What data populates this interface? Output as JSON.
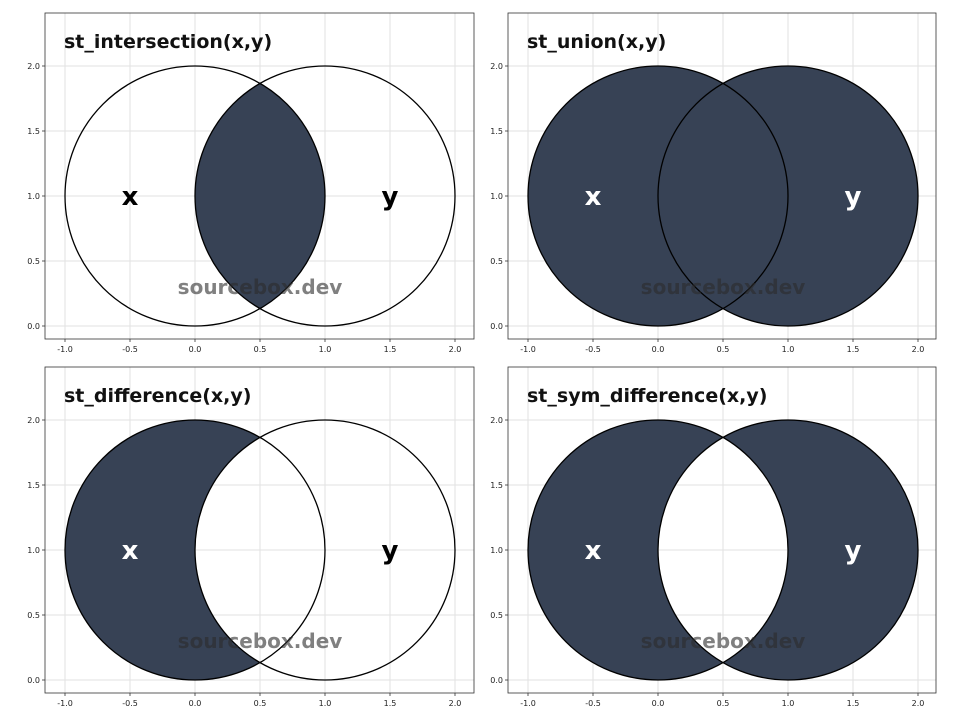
{
  "colors": {
    "fill": "#374255",
    "outline": "#000000",
    "background": "#ffffff",
    "grid": "#e2e2e2",
    "label_on_fill": "#ffffff",
    "label_on_empty": "#000000"
  },
  "watermark": "sourcebox.dev",
  "chart_data": [
    {
      "type": "venn",
      "title": "st_intersection(x,y)",
      "operation": "intersection",
      "circles": [
        {
          "name": "x",
          "cx": 0.0,
          "cy": 1.0,
          "r": 1.0
        },
        {
          "name": "y",
          "cx": 1.0,
          "cy": 1.0,
          "r": 1.0
        }
      ],
      "labels": [
        {
          "text": "x",
          "x": -0.5,
          "y": 1.0
        },
        {
          "text": "y",
          "x": 1.5,
          "y": 1.0
        }
      ],
      "xlim": [
        -1.0,
        2.0
      ],
      "ylim": [
        0.0,
        2.0
      ],
      "xticks": [
        "-1.0",
        "-0.5",
        "0.0",
        "0.5",
        "1.0",
        "1.5",
        "2.0"
      ],
      "yticks": [
        "0.0",
        "0.5",
        "1.0",
        "1.5",
        "2.0"
      ],
      "grid": true
    },
    {
      "type": "venn",
      "title": "st_union(x,y)",
      "operation": "union",
      "circles": [
        {
          "name": "x",
          "cx": 0.0,
          "cy": 1.0,
          "r": 1.0
        },
        {
          "name": "y",
          "cx": 1.0,
          "cy": 1.0,
          "r": 1.0
        }
      ],
      "labels": [
        {
          "text": "x",
          "x": -0.5,
          "y": 1.0
        },
        {
          "text": "y",
          "x": 1.5,
          "y": 1.0
        }
      ],
      "xlim": [
        -1.0,
        2.0
      ],
      "ylim": [
        0.0,
        2.0
      ],
      "xticks": [
        "-1.0",
        "-0.5",
        "0.0",
        "0.5",
        "1.0",
        "1.5",
        "2.0"
      ],
      "yticks": [
        "0.0",
        "0.5",
        "1.0",
        "1.5",
        "2.0"
      ],
      "grid": true
    },
    {
      "type": "venn",
      "title": "st_difference(x,y)",
      "operation": "difference",
      "circles": [
        {
          "name": "x",
          "cx": 0.0,
          "cy": 1.0,
          "r": 1.0
        },
        {
          "name": "y",
          "cx": 1.0,
          "cy": 1.0,
          "r": 1.0
        }
      ],
      "labels": [
        {
          "text": "x",
          "x": -0.5,
          "y": 1.0
        },
        {
          "text": "y",
          "x": 1.5,
          "y": 1.0
        }
      ],
      "xlim": [
        -1.0,
        2.0
      ],
      "ylim": [
        0.0,
        2.0
      ],
      "xticks": [
        "-1.0",
        "-0.5",
        "0.0",
        "0.5",
        "1.0",
        "1.5",
        "2.0"
      ],
      "yticks": [
        "0.0",
        "0.5",
        "1.0",
        "1.5",
        "2.0"
      ],
      "grid": true
    },
    {
      "type": "venn",
      "title": "st_sym_difference(x,y)",
      "operation": "sym_difference",
      "circles": [
        {
          "name": "x",
          "cx": 0.0,
          "cy": 1.0,
          "r": 1.0
        },
        {
          "name": "y",
          "cx": 1.0,
          "cy": 1.0,
          "r": 1.0
        }
      ],
      "labels": [
        {
          "text": "x",
          "x": -0.5,
          "y": 1.0
        },
        {
          "text": "y",
          "x": 1.5,
          "y": 1.0
        }
      ],
      "xlim": [
        -1.0,
        2.0
      ],
      "ylim": [
        0.0,
        2.0
      ],
      "xticks": [
        "-1.0",
        "-0.5",
        "0.0",
        "0.5",
        "1.0",
        "1.5",
        "2.0"
      ],
      "yticks": [
        "0.0",
        "0.5",
        "1.0",
        "1.5",
        "2.0"
      ],
      "grid": true
    }
  ]
}
